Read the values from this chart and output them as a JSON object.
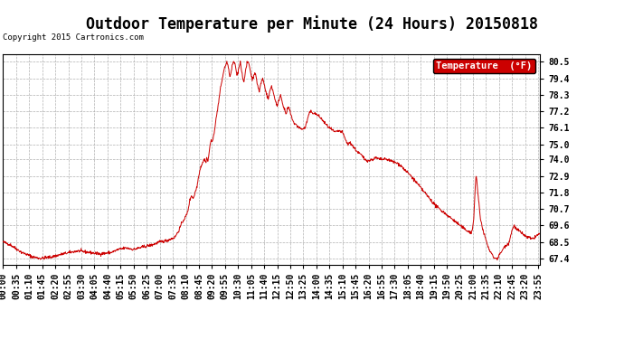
{
  "title": "Outdoor Temperature per Minute (24 Hours) 20150818",
  "copyright": "Copyright 2015 Cartronics.com",
  "legend_label": "Temperature  (°F)",
  "line_color": "#cc0000",
  "legend_bg": "#cc0000",
  "legend_text_color": "#ffffff",
  "background_color": "#ffffff",
  "grid_color": "#b0b0b0",
  "yticks": [
    67.4,
    68.5,
    69.6,
    70.7,
    71.8,
    72.9,
    74.0,
    75.0,
    76.1,
    77.2,
    78.3,
    79.4,
    80.5
  ],
  "ylim": [
    67.0,
    81.0
  ],
  "title_fontsize": 12,
  "tick_fontsize": 7,
  "keypoints": [
    [
      0,
      68.5
    ],
    [
      20,
      68.3
    ],
    [
      50,
      67.8
    ],
    [
      80,
      67.5
    ],
    [
      100,
      67.4
    ],
    [
      130,
      67.5
    ],
    [
      160,
      67.7
    ],
    [
      200,
      67.9
    ],
    [
      230,
      67.8
    ],
    [
      260,
      67.7
    ],
    [
      290,
      67.8
    ],
    [
      310,
      68.0
    ],
    [
      330,
      68.1
    ],
    [
      350,
      68.0
    ],
    [
      365,
      68.1
    ],
    [
      380,
      68.2
    ],
    [
      400,
      68.3
    ],
    [
      420,
      68.5
    ],
    [
      440,
      68.6
    ],
    [
      460,
      68.8
    ],
    [
      470,
      69.2
    ],
    [
      480,
      69.8
    ],
    [
      490,
      70.2
    ],
    [
      495,
      70.5
    ],
    [
      500,
      71.2
    ],
    [
      505,
      71.6
    ],
    [
      510,
      71.4
    ],
    [
      515,
      71.8
    ],
    [
      520,
      72.2
    ],
    [
      525,
      73.0
    ],
    [
      530,
      73.5
    ],
    [
      535,
      73.8
    ],
    [
      540,
      74.0
    ],
    [
      543,
      73.8
    ],
    [
      546,
      74.1
    ],
    [
      549,
      73.9
    ],
    [
      552,
      74.3
    ],
    [
      555,
      75.0
    ],
    [
      558,
      75.3
    ],
    [
      561,
      75.1
    ],
    [
      564,
      75.5
    ],
    [
      567,
      76.0
    ],
    [
      570,
      76.5
    ],
    [
      573,
      77.0
    ],
    [
      576,
      77.5
    ],
    [
      579,
      78.0
    ],
    [
      582,
      78.6
    ],
    [
      585,
      79.0
    ],
    [
      588,
      79.4
    ],
    [
      591,
      79.8
    ],
    [
      594,
      80.1
    ],
    [
      597,
      80.3
    ],
    [
      600,
      80.5
    ],
    [
      603,
      80.2
    ],
    [
      606,
      79.8
    ],
    [
      609,
      79.5
    ],
    [
      612,
      79.9
    ],
    [
      615,
      80.3
    ],
    [
      618,
      80.5
    ],
    [
      621,
      80.4
    ],
    [
      624,
      80.0
    ],
    [
      627,
      79.6
    ],
    [
      630,
      79.8
    ],
    [
      633,
      80.2
    ],
    [
      636,
      80.5
    ],
    [
      639,
      80.0
    ],
    [
      642,
      79.5
    ],
    [
      645,
      79.2
    ],
    [
      648,
      79.5
    ],
    [
      651,
      80.0
    ],
    [
      654,
      80.4
    ],
    [
      657,
      80.5
    ],
    [
      660,
      80.3
    ],
    [
      663,
      79.9
    ],
    [
      666,
      79.5
    ],
    [
      669,
      79.3
    ],
    [
      672,
      79.6
    ],
    [
      675,
      79.8
    ],
    [
      678,
      79.5
    ],
    [
      681,
      79.1
    ],
    [
      684,
      78.8
    ],
    [
      687,
      78.5
    ],
    [
      690,
      78.9
    ],
    [
      693,
      79.2
    ],
    [
      696,
      79.4
    ],
    [
      699,
      79.1
    ],
    [
      702,
      78.8
    ],
    [
      705,
      78.5
    ],
    [
      708,
      78.2
    ],
    [
      711,
      78.0
    ],
    [
      714,
      78.4
    ],
    [
      717,
      78.7
    ],
    [
      720,
      78.9
    ],
    [
      723,
      78.6
    ],
    [
      726,
      78.3
    ],
    [
      729,
      78.0
    ],
    [
      732,
      77.8
    ],
    [
      735,
      77.5
    ],
    [
      738,
      77.8
    ],
    [
      741,
      78.1
    ],
    [
      744,
      78.3
    ],
    [
      747,
      78.0
    ],
    [
      750,
      77.7
    ],
    [
      753,
      77.4
    ],
    [
      756,
      77.2
    ],
    [
      759,
      77.0
    ],
    [
      762,
      77.3
    ],
    [
      765,
      77.5
    ],
    [
      768,
      77.3
    ],
    [
      771,
      77.0
    ],
    [
      774,
      76.8
    ],
    [
      777,
      76.6
    ],
    [
      780,
      76.4
    ],
    [
      790,
      76.2
    ],
    [
      800,
      76.0
    ],
    [
      810,
      76.1
    ],
    [
      820,
      77.0
    ],
    [
      825,
      77.2
    ],
    [
      830,
      77.1
    ],
    [
      840,
      77.0
    ],
    [
      850,
      76.8
    ],
    [
      860,
      76.5
    ],
    [
      870,
      76.2
    ],
    [
      880,
      76.0
    ],
    [
      890,
      75.8
    ],
    [
      900,
      75.9
    ],
    [
      910,
      75.8
    ],
    [
      915,
      75.5
    ],
    [
      920,
      75.2
    ],
    [
      925,
      75.0
    ],
    [
      930,
      75.1
    ],
    [
      935,
      75.0
    ],
    [
      940,
      74.8
    ],
    [
      950,
      74.5
    ],
    [
      960,
      74.3
    ],
    [
      970,
      74.0
    ],
    [
      980,
      73.9
    ],
    [
      990,
      74.0
    ],
    [
      1000,
      74.1
    ],
    [
      1010,
      74.0
    ],
    [
      1020,
      74.0
    ],
    [
      1030,
      74.0
    ],
    [
      1040,
      73.9
    ],
    [
      1050,
      73.8
    ],
    [
      1060,
      73.7
    ],
    [
      1070,
      73.5
    ],
    [
      1080,
      73.2
    ],
    [
      1090,
      73.0
    ],
    [
      1100,
      72.7
    ],
    [
      1110,
      72.4
    ],
    [
      1120,
      72.1
    ],
    [
      1130,
      71.8
    ],
    [
      1140,
      71.5
    ],
    [
      1150,
      71.2
    ],
    [
      1160,
      70.9
    ],
    [
      1170,
      70.7
    ],
    [
      1180,
      70.5
    ],
    [
      1190,
      70.3
    ],
    [
      1200,
      70.1
    ],
    [
      1210,
      69.9
    ],
    [
      1220,
      69.7
    ],
    [
      1230,
      69.5
    ],
    [
      1240,
      69.3
    ],
    [
      1250,
      69.2
    ],
    [
      1255,
      69.1
    ],
    [
      1258,
      69.3
    ],
    [
      1260,
      69.6
    ],
    [
      1262,
      70.0
    ],
    [
      1265,
      71.8
    ],
    [
      1268,
      72.9
    ],
    [
      1270,
      72.6
    ],
    [
      1272,
      72.0
    ],
    [
      1274,
      71.5
    ],
    [
      1276,
      71.0
    ],
    [
      1278,
      70.5
    ],
    [
      1280,
      70.0
    ],
    [
      1285,
      69.5
    ],
    [
      1290,
      69.0
    ],
    [
      1295,
      68.6
    ],
    [
      1300,
      68.2
    ],
    [
      1305,
      67.9
    ],
    [
      1310,
      67.7
    ],
    [
      1315,
      67.5
    ],
    [
      1320,
      67.4
    ],
    [
      1325,
      67.4
    ],
    [
      1328,
      67.5
    ],
    [
      1330,
      67.6
    ],
    [
      1335,
      67.8
    ],
    [
      1340,
      68.0
    ],
    [
      1345,
      68.2
    ],
    [
      1350,
      68.3
    ],
    [
      1355,
      68.4
    ],
    [
      1358,
      68.6
    ],
    [
      1360,
      68.8
    ],
    [
      1362,
      69.0
    ],
    [
      1365,
      69.3
    ],
    [
      1368,
      69.5
    ],
    [
      1370,
      69.6
    ],
    [
      1372,
      69.5
    ],
    [
      1375,
      69.4
    ],
    [
      1378,
      69.3
    ],
    [
      1380,
      69.3
    ],
    [
      1385,
      69.2
    ],
    [
      1390,
      69.1
    ],
    [
      1395,
      69.0
    ],
    [
      1400,
      68.9
    ],
    [
      1405,
      68.8
    ],
    [
      1410,
      68.8
    ],
    [
      1415,
      68.7
    ],
    [
      1420,
      68.7
    ],
    [
      1425,
      68.8
    ],
    [
      1430,
      68.9
    ],
    [
      1435,
      69.0
    ],
    [
      1439,
      69.0
    ]
  ]
}
